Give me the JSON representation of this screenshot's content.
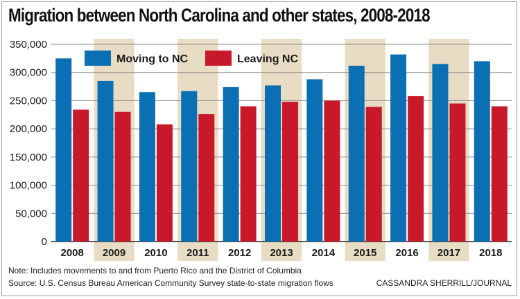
{
  "title": "Migration between North Carolina and other states, 2008-2018",
  "note": "Note: Includes movements to and from Puerto Rico and the District of Columbia",
  "source": "Source: U.S. Census Bureau American Community Survey state-to-state migration flows",
  "credit": "CASSANDRA SHERRILL/JOURNAL",
  "colors": {
    "moving": "#0a6fb3",
    "leaving": "#c8192b",
    "band": "#e9dcc4",
    "grid": "#8a8a8a"
  },
  "chart_data": {
    "type": "bar",
    "title": "Migration between North Carolina and other states, 2008-2018",
    "xlabel": "",
    "ylabel": "",
    "ylim": [
      0,
      350000
    ],
    "yticks": [
      0,
      50000,
      100000,
      150000,
      200000,
      250000,
      300000,
      350000
    ],
    "ytick_labels": [
      "0",
      "50,000",
      "100,000",
      "150,000",
      "200,000",
      "250,000",
      "300,000",
      "350,000"
    ],
    "categories": [
      "2008",
      "2009",
      "2010",
      "2011",
      "2012",
      "2013",
      "2014",
      "2015",
      "2016",
      "2017",
      "2018"
    ],
    "shaded_categories": [
      "2009",
      "2011",
      "2013",
      "2015",
      "2017"
    ],
    "grid": true,
    "legend_position": "top-left",
    "series": [
      {
        "name": "Moving to NC",
        "color": "#0a6fb3",
        "values": [
          325000,
          285000,
          265000,
          267000,
          274000,
          277000,
          288000,
          312000,
          332000,
          315000,
          320000
        ]
      },
      {
        "name": "Leaving NC",
        "color": "#c8192b",
        "values": [
          234000,
          230000,
          208000,
          226000,
          240000,
          248000,
          250000,
          239000,
          258000,
          245000,
          240000
        ]
      }
    ]
  }
}
